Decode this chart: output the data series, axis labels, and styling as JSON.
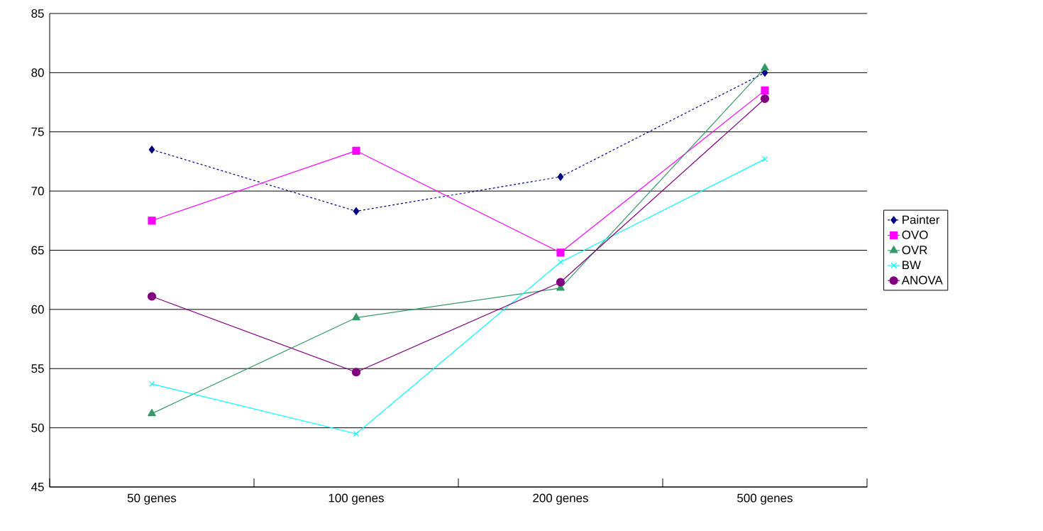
{
  "chart_data": {
    "type": "line",
    "categories": [
      "50 genes",
      "100 genes",
      "200 genes",
      "500 genes"
    ],
    "series": [
      {
        "name": "Painter",
        "color": "#000080",
        "marker": "diamond",
        "line_style": "dashed",
        "values": [
          73.5,
          68.3,
          71.2,
          80.0
        ]
      },
      {
        "name": "OVO",
        "color": "#ff00ff",
        "marker": "square",
        "line_style": "solid",
        "values": [
          67.5,
          73.4,
          64.8,
          78.5
        ]
      },
      {
        "name": "OVR",
        "color": "#339966",
        "marker": "triangle",
        "line_style": "solid",
        "values": [
          51.2,
          59.3,
          61.8,
          80.4
        ]
      },
      {
        "name": "BW",
        "color": "#00ffff",
        "marker": "cross",
        "line_style": "solid",
        "values": [
          53.7,
          49.5,
          64.0,
          72.7
        ]
      },
      {
        "name": "ANOVA",
        "color": "#800080",
        "marker": "circle",
        "line_style": "solid",
        "values": [
          61.1,
          54.7,
          62.3,
          77.8
        ]
      }
    ],
    "ylim": [
      45,
      85
    ],
    "yticks": [
      45,
      50,
      55,
      60,
      65,
      70,
      75,
      80,
      85
    ],
    "grid": "y",
    "legend": "right"
  }
}
